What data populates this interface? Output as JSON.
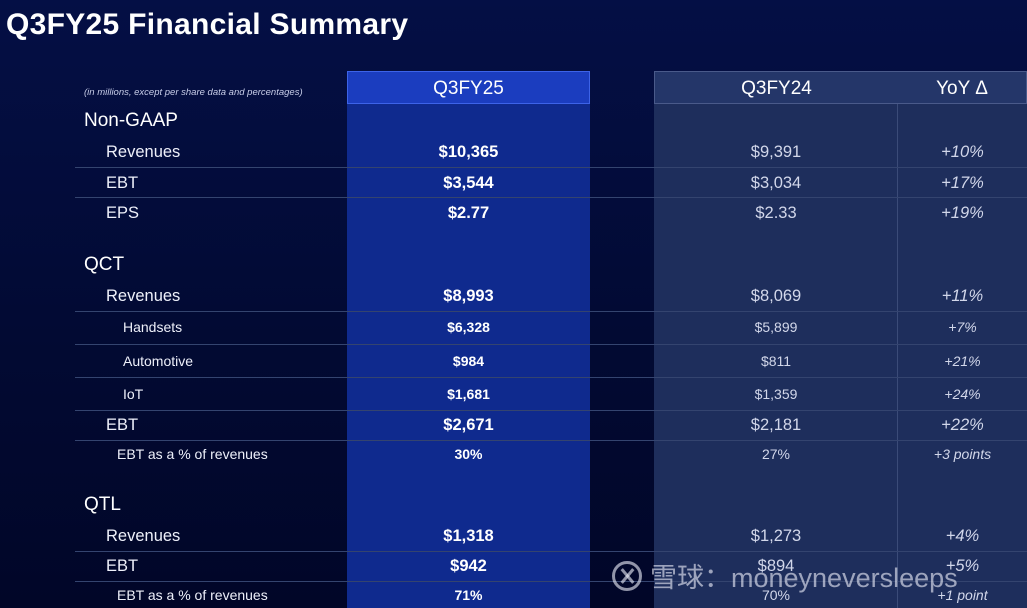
{
  "title": "Q3FY25 Financial Summary",
  "note": "(in millions, except per share data and percentages)",
  "columns": {
    "current": "Q3FY25",
    "prior": "Q3FY24",
    "yoy": "YoY Δ"
  },
  "sections": {
    "nongaap": {
      "label": "Non-GAAP",
      "rows": [
        {
          "label": "Revenues",
          "current": "$10,365",
          "prior": "$9,391",
          "yoy": "+10%"
        },
        {
          "label": "EBT",
          "current": "$3,544",
          "prior": "$3,034",
          "yoy": "+17%"
        },
        {
          "label": "EPS",
          "current": "$2.77",
          "prior": "$2.33",
          "yoy": "+19%"
        }
      ]
    },
    "qct": {
      "label": "QCT",
      "rows": [
        {
          "label": "Revenues",
          "current": "$8,993",
          "prior": "$8,069",
          "yoy": "+11%"
        },
        {
          "label": "Handsets",
          "current": "$6,328",
          "prior": "$5,899",
          "yoy": "+7%"
        },
        {
          "label": "Automotive",
          "current": "$984",
          "prior": "$811",
          "yoy": "+21%"
        },
        {
          "label": "IoT",
          "current": "$1,681",
          "prior": "$1,359",
          "yoy": "+24%"
        },
        {
          "label": "EBT",
          "current": "$2,671",
          "prior": "$2,181",
          "yoy": "+22%"
        },
        {
          "label": "EBT as a % of revenues",
          "current": "30%",
          "prior": "27%",
          "yoy": "+3 points"
        }
      ]
    },
    "qtl": {
      "label": "QTL",
      "rows": [
        {
          "label": "Revenues",
          "current": "$1,318",
          "prior": "$1,273",
          "yoy": "+4%"
        },
        {
          "label": "EBT",
          "current": "$942",
          "prior": "$894",
          "yoy": "+5%"
        },
        {
          "label": "EBT as a % of revenues",
          "current": "71%",
          "prior": "70%",
          "yoy": "+1 point"
        }
      ]
    }
  },
  "watermark": {
    "text": "雪球：moneyneversleeps",
    "icon": "snowball-logo-icon"
  }
}
